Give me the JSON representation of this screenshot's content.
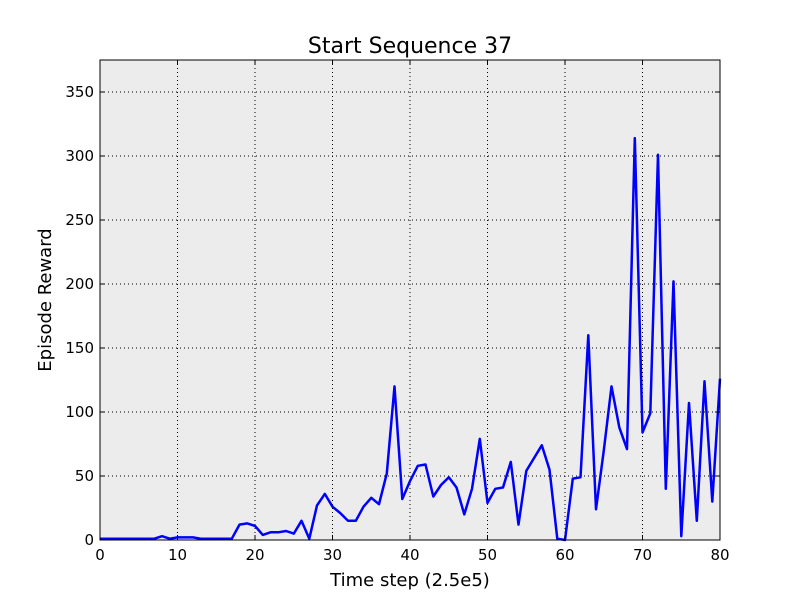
{
  "chart_data": {
    "type": "line",
    "title": "Start Sequence 37",
    "xlabel": "Time step (2.5e5)",
    "ylabel": "Episode Reward",
    "xlim": [
      0,
      80
    ],
    "ylim": [
      0,
      375
    ],
    "xticks": [
      0,
      10,
      20,
      30,
      40,
      50,
      60,
      70,
      80
    ],
    "yticks": [
      0,
      50,
      100,
      150,
      200,
      250,
      300,
      350
    ],
    "grid": true,
    "series": [
      {
        "color": "#0000ff",
        "x": [
          0,
          1,
          2,
          3,
          4,
          5,
          6,
          7,
          8,
          9,
          10,
          11,
          12,
          13,
          14,
          15,
          16,
          17,
          18,
          19,
          20,
          21,
          22,
          23,
          24,
          25,
          26,
          27,
          28,
          29,
          30,
          31,
          32,
          33,
          34,
          35,
          36,
          37,
          38,
          39,
          40,
          41,
          42,
          43,
          44,
          45,
          46,
          47,
          48,
          49,
          50,
          51,
          52,
          53,
          54,
          55,
          56,
          57,
          58,
          59,
          60,
          61,
          62,
          63,
          64,
          65,
          66,
          67,
          68,
          69,
          70,
          71,
          72,
          73,
          74,
          75,
          76,
          77,
          78,
          79,
          80
        ],
        "y": [
          1,
          1,
          1,
          1,
          1,
          1,
          1,
          1,
          3,
          1,
          2,
          2,
          2,
          1,
          1,
          1,
          1,
          1,
          12,
          13,
          11,
          4,
          6,
          6,
          7,
          5,
          15,
          1,
          27,
          36,
          26,
          21,
          15,
          15,
          26,
          33,
          28,
          52,
          120,
          32,
          46,
          58,
          59,
          34,
          43,
          49,
          41,
          20,
          40,
          79,
          29,
          40,
          41,
          61,
          12,
          54,
          64,
          74,
          55,
          1,
          0,
          48,
          49,
          160,
          24,
          70,
          120,
          88,
          71,
          314,
          84,
          99,
          301,
          40,
          202,
          3,
          107,
          15,
          124,
          30,
          126
        ]
      }
    ]
  }
}
